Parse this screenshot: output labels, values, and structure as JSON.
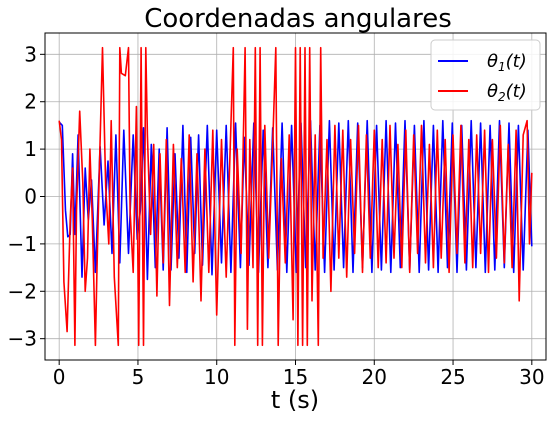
{
  "chart_data": {
    "type": "line",
    "title": "Coordenadas angulares",
    "xlabel": "t (s)",
    "ylabel": "",
    "xlim": [
      -0.9,
      30.9
    ],
    "ylim": [
      -3.45,
      3.45
    ],
    "xticks": [
      0,
      5,
      10,
      15,
      20,
      25,
      30
    ],
    "yticks": [
      -3,
      -2,
      -1,
      0,
      1,
      2,
      3
    ],
    "xtick_labels": [
      "0",
      "5",
      "10",
      "15",
      "20",
      "25",
      "30"
    ],
    "ytick_labels": [
      "−3",
      "−2",
      "−1",
      "0",
      "1",
      "2",
      "3"
    ],
    "grid": true,
    "legend_position": "top-right",
    "series": [
      {
        "name": "θ₁(t)",
        "legend_base": "θ",
        "legend_sub": "1",
        "legend_suffix": "(t)",
        "color": "#0000ff",
        "points": [
          [
            0.0,
            1.57
          ],
          [
            0.2,
            1.5
          ],
          [
            0.4,
            -0.3
          ],
          [
            0.55,
            -0.85
          ],
          [
            0.7,
            -0.8
          ],
          [
            0.85,
            0.9
          ],
          [
            1.0,
            -0.8
          ],
          [
            1.2,
            1.3
          ],
          [
            1.45,
            -1.7
          ],
          [
            1.65,
            0.6
          ],
          [
            1.85,
            -0.5
          ],
          [
            2.05,
            0.35
          ],
          [
            2.3,
            -1.6
          ],
          [
            2.6,
            1.05
          ],
          [
            2.85,
            -0.6
          ],
          [
            3.1,
            0.75
          ],
          [
            3.35,
            -1.2
          ],
          [
            3.6,
            1.3
          ],
          [
            3.85,
            -1.4
          ],
          [
            4.1,
            1.4
          ],
          [
            4.4,
            -1.2
          ],
          [
            4.7,
            1.3
          ],
          [
            4.95,
            -0.9
          ],
          [
            5.15,
            -0.3
          ],
          [
            5.35,
            1.45
          ],
          [
            5.6,
            -1.75
          ],
          [
            5.85,
            1.1
          ],
          [
            6.1,
            -1.5
          ],
          [
            6.35,
            1.0
          ],
          [
            6.6,
            -1.55
          ],
          [
            6.85,
            1.45
          ],
          [
            7.1,
            -1.55
          ],
          [
            7.35,
            0.9
          ],
          [
            7.6,
            -1.3
          ],
          [
            7.85,
            1.5
          ],
          [
            8.1,
            -1.6
          ],
          [
            8.35,
            1.25
          ],
          [
            8.6,
            -1.2
          ],
          [
            8.85,
            1.3
          ],
          [
            9.1,
            -1.45
          ],
          [
            9.4,
            1.5
          ],
          [
            9.7,
            -1.65
          ],
          [
            10.0,
            1.4
          ],
          [
            10.3,
            -1.4
          ],
          [
            10.6,
            1.5
          ],
          [
            10.9,
            -1.6
          ],
          [
            11.2,
            1.55
          ],
          [
            11.5,
            -1.5
          ],
          [
            11.75,
            1.25
          ],
          [
            12.05,
            -1.45
          ],
          [
            12.35,
            1.55
          ],
          [
            12.65,
            -1.6
          ],
          [
            12.95,
            1.4
          ],
          [
            13.25,
            -1.5
          ],
          [
            13.55,
            1.45
          ],
          [
            13.85,
            -1.55
          ],
          [
            14.15,
            1.55
          ],
          [
            14.45,
            -1.6
          ],
          [
            14.75,
            1.5
          ],
          [
            15.05,
            -1.6
          ],
          [
            15.35,
            1.55
          ],
          [
            15.65,
            -1.5
          ],
          [
            15.95,
            1.6
          ],
          [
            16.25,
            -1.55
          ],
          [
            16.55,
            1.5
          ],
          [
            16.85,
            -1.6
          ],
          [
            17.15,
            1.6
          ],
          [
            17.45,
            -1.55
          ],
          [
            17.75,
            1.55
          ],
          [
            18.05,
            -1.5
          ],
          [
            18.35,
            1.6
          ],
          [
            18.65,
            -1.6
          ],
          [
            18.95,
            1.55
          ],
          [
            19.25,
            -1.5
          ],
          [
            19.55,
            1.6
          ],
          [
            19.85,
            -1.6
          ],
          [
            20.15,
            1.5
          ],
          [
            20.45,
            -1.55
          ],
          [
            20.75,
            1.6
          ],
          [
            21.05,
            -1.6
          ],
          [
            21.35,
            1.55
          ],
          [
            21.65,
            -1.5
          ],
          [
            21.95,
            1.6
          ],
          [
            22.25,
            -1.55
          ],
          [
            22.55,
            1.5
          ],
          [
            22.85,
            -1.6
          ],
          [
            23.15,
            1.6
          ],
          [
            23.45,
            -1.55
          ],
          [
            23.75,
            1.5
          ],
          [
            24.05,
            -1.6
          ],
          [
            24.35,
            1.6
          ],
          [
            24.65,
            -1.5
          ],
          [
            24.95,
            1.55
          ],
          [
            25.25,
            -1.6
          ],
          [
            25.55,
            1.5
          ],
          [
            25.85,
            -1.55
          ],
          [
            26.15,
            1.6
          ],
          [
            26.45,
            -1.5
          ],
          [
            26.75,
            1.55
          ],
          [
            27.05,
            -1.6
          ],
          [
            27.35,
            1.5
          ],
          [
            27.65,
            -1.55
          ],
          [
            27.95,
            1.6
          ],
          [
            28.25,
            -1.5
          ],
          [
            28.55,
            1.55
          ],
          [
            28.85,
            -1.6
          ],
          [
            29.15,
            1.5
          ],
          [
            29.45,
            -1.55
          ],
          [
            29.75,
            1.4
          ],
          [
            30.0,
            -1.05
          ]
        ]
      },
      {
        "name": "θ₂(t)",
        "legend_base": "θ",
        "legend_sub": "2",
        "legend_suffix": "(t)",
        "color": "#ff0000",
        "points": [
          [
            0.0,
            1.6
          ],
          [
            0.15,
            1.2
          ],
          [
            0.3,
            -1.8
          ],
          [
            0.5,
            -2.85
          ],
          [
            0.7,
            -0.5
          ],
          [
            0.85,
            0.6
          ],
          [
            1.0,
            -3.14
          ],
          [
            1.1,
            -0.3
          ],
          [
            1.3,
            1.8
          ],
          [
            1.5,
            0.3
          ],
          [
            1.65,
            -2.0
          ],
          [
            1.8,
            -1.3
          ],
          [
            1.95,
            1.0
          ],
          [
            2.1,
            -0.5
          ],
          [
            2.3,
            -3.14
          ],
          [
            2.4,
            -1.5
          ],
          [
            2.55,
            0.6
          ],
          [
            2.75,
            3.14
          ],
          [
            2.95,
            0.2
          ],
          [
            3.15,
            -1.0
          ],
          [
            3.3,
            1.6
          ],
          [
            3.5,
            -1.7
          ],
          [
            3.75,
            -3.14
          ],
          [
            3.85,
            3.14
          ],
          [
            3.95,
            2.6
          ],
          [
            4.2,
            2.55
          ],
          [
            4.4,
            3.14
          ],
          [
            4.5,
            -0.3
          ],
          [
            4.7,
            -1.6
          ],
          [
            4.9,
            1.9
          ],
          [
            5.05,
            -3.14
          ],
          [
            5.2,
            3.14
          ],
          [
            5.35,
            -3.14
          ],
          [
            5.5,
            3.14
          ],
          [
            5.6,
            1.3
          ],
          [
            5.8,
            -0.8
          ],
          [
            6.0,
            1.1
          ],
          [
            6.2,
            -2.1
          ],
          [
            6.4,
            0.9
          ],
          [
            6.6,
            -1.4
          ],
          [
            6.8,
            1.2
          ],
          [
            7.0,
            -2.3
          ],
          [
            7.25,
            1.1
          ],
          [
            7.5,
            -1.5
          ],
          [
            7.75,
            0.8
          ],
          [
            8.0,
            -1.6
          ],
          [
            8.25,
            1.3
          ],
          [
            8.5,
            -1.8
          ],
          [
            8.75,
            0.9
          ],
          [
            9.0,
            -2.2
          ],
          [
            9.25,
            1.0
          ],
          [
            9.5,
            -1.6
          ],
          [
            9.75,
            1.4
          ],
          [
            10.0,
            -2.5
          ],
          [
            10.3,
            1.2
          ],
          [
            10.6,
            -1.7
          ],
          [
            10.9,
            1.5
          ],
          [
            11.05,
            3.14
          ],
          [
            11.15,
            -3.14
          ],
          [
            11.3,
            1.0
          ],
          [
            11.55,
            -1.2
          ],
          [
            11.8,
            3.14
          ],
          [
            11.95,
            -2.8
          ],
          [
            12.1,
            1.2
          ],
          [
            12.3,
            -1.5
          ],
          [
            12.45,
            3.14
          ],
          [
            12.6,
            -3.14
          ],
          [
            12.75,
            3.14
          ],
          [
            12.9,
            -3.14
          ],
          [
            13.05,
            1.5
          ],
          [
            13.3,
            -1.3
          ],
          [
            13.55,
            1.1
          ],
          [
            13.75,
            3.14
          ],
          [
            13.9,
            -3.14
          ],
          [
            14.1,
            0.8
          ],
          [
            14.35,
            -1.4
          ],
          [
            14.6,
            1.3
          ],
          [
            14.85,
            -2.6
          ],
          [
            15.0,
            3.14
          ],
          [
            15.15,
            -3.14
          ],
          [
            15.3,
            3.14
          ],
          [
            15.45,
            -3.14
          ],
          [
            15.6,
            3.14
          ],
          [
            15.75,
            -3.14
          ],
          [
            15.9,
            3.14
          ],
          [
            16.05,
            -2.2
          ],
          [
            16.25,
            1.3
          ],
          [
            16.45,
            -3.14
          ],
          [
            16.6,
            3.14
          ],
          [
            16.75,
            -1.3
          ],
          [
            17.0,
            1.2
          ],
          [
            17.25,
            -2.0
          ],
          [
            17.5,
            1.5
          ],
          [
            17.75,
            -1.3
          ],
          [
            18.0,
            1.4
          ],
          [
            18.25,
            -1.7
          ],
          [
            18.5,
            1.2
          ],
          [
            18.75,
            -1.2
          ],
          [
            19.0,
            1.5
          ],
          [
            19.25,
            -1.6
          ],
          [
            19.5,
            1.3
          ],
          [
            19.75,
            -1.3
          ],
          [
            20.0,
            1.4
          ],
          [
            20.25,
            -1.5
          ],
          [
            20.5,
            1.2
          ],
          [
            20.75,
            -1.4
          ],
          [
            21.0,
            1.5
          ],
          [
            21.25,
            -1.3
          ],
          [
            21.5,
            1.1
          ],
          [
            21.75,
            -1.5
          ],
          [
            22.0,
            1.4
          ],
          [
            22.25,
            -1.6
          ],
          [
            22.5,
            1.3
          ],
          [
            22.75,
            -1.2
          ],
          [
            23.0,
            1.5
          ],
          [
            23.25,
            -1.4
          ],
          [
            23.5,
            1.1
          ],
          [
            23.75,
            -1.5
          ],
          [
            24.0,
            1.4
          ],
          [
            24.25,
            -1.3
          ],
          [
            24.5,
            1.2
          ],
          [
            24.75,
            -1.6
          ],
          [
            25.0,
            1.3
          ],
          [
            25.25,
            -1.2
          ],
          [
            25.5,
            1.5
          ],
          [
            25.75,
            -1.4
          ],
          [
            26.0,
            1.2
          ],
          [
            26.25,
            -1.5
          ],
          [
            26.5,
            1.3
          ],
          [
            26.75,
            -1.2
          ],
          [
            27.0,
            1.4
          ],
          [
            27.25,
            -1.6
          ],
          [
            27.5,
            1.2
          ],
          [
            27.75,
            -1.3
          ],
          [
            28.0,
            1.5
          ],
          [
            28.25,
            -1.4
          ],
          [
            28.5,
            1.1
          ],
          [
            28.75,
            -1.5
          ],
          [
            29.0,
            1.4
          ],
          [
            29.2,
            -2.2
          ],
          [
            29.45,
            1.3
          ],
          [
            29.7,
            1.6
          ],
          [
            29.85,
            -1.0
          ],
          [
            30.0,
            0.5
          ]
        ]
      }
    ]
  }
}
